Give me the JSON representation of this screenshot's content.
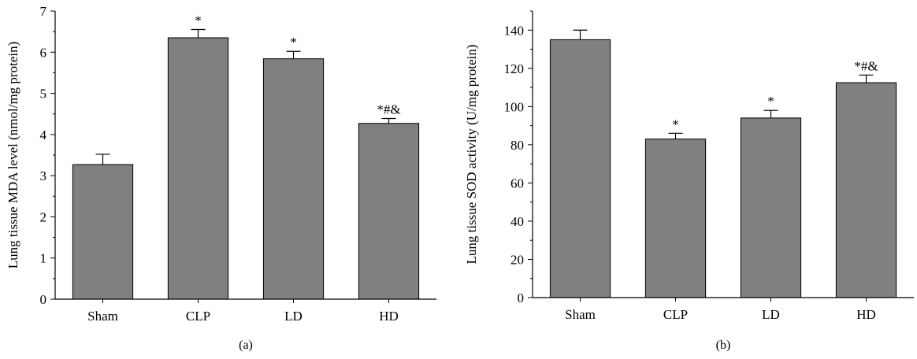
{
  "chart_data": [
    {
      "type": "bar",
      "panel_label": "(a)",
      "categories": [
        "Sham",
        "CLP",
        "LD",
        "HD"
      ],
      "values": [
        3.27,
        6.35,
        5.84,
        4.27
      ],
      "errors": [
        0.25,
        0.2,
        0.18,
        0.12
      ],
      "annotations": [
        "",
        "*",
        "*",
        "*#&"
      ],
      "ylabel": "Lung tissue MDA level (nmol/mg protein)",
      "xlabel": "",
      "ylim": [
        0,
        7
      ],
      "yticks": [
        0,
        1,
        2,
        3,
        4,
        5,
        6,
        7
      ],
      "bar_color": "#808080",
      "grid": false
    },
    {
      "type": "bar",
      "panel_label": "(b)",
      "categories": [
        "Sham",
        "CLP",
        "LD",
        "HD"
      ],
      "values": [
        135,
        83,
        94,
        112.5
      ],
      "errors": [
        5,
        3,
        4,
        4
      ],
      "annotations": [
        "",
        "*",
        "*",
        "*#&"
      ],
      "ylabel": "Lung tissue SOD activity (U/mg protein)",
      "xlabel": "",
      "ylim": [
        0,
        150
      ],
      "yticks": [
        0,
        20,
        40,
        60,
        80,
        100,
        120,
        140
      ],
      "bar_color": "#808080",
      "grid": false
    }
  ]
}
